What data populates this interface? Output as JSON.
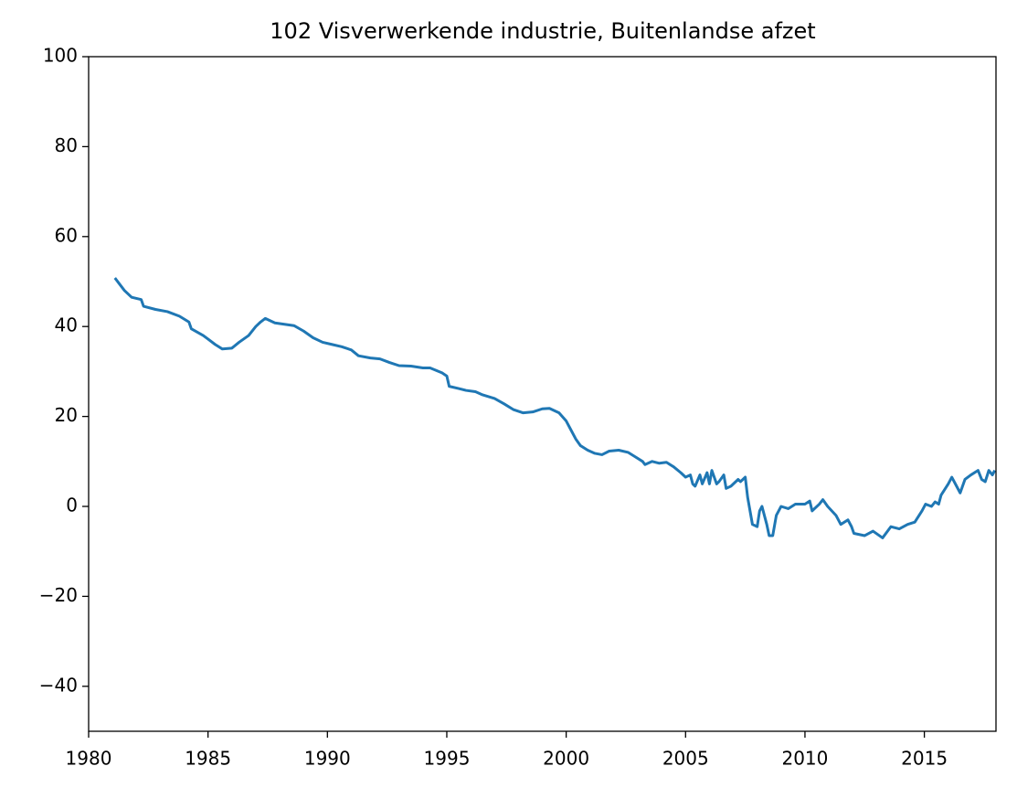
{
  "chart_data": {
    "type": "line",
    "title": "102 Visverwerkende industrie, Buitenlandse afzet",
    "xlim": [
      1980,
      2018
    ],
    "xticks": [
      1980,
      1985,
      1990,
      1995,
      2000,
      2005,
      2010,
      2015
    ],
    "ylim": [
      -50,
      100
    ],
    "yticks": [
      {
        "value": -40,
        "label": "−40"
      },
      {
        "value": -20,
        "label": "−20"
      },
      0,
      20,
      40,
      60,
      80,
      100
    ],
    "grid": false,
    "series": [
      {
        "color": "#1f77b4",
        "x": [
          1981.1,
          1981.5,
          1981.8,
          1982.2,
          1982.3,
          1982.8,
          1983.3,
          1983.8,
          1984.2,
          1984.3,
          1984.8,
          1985.0,
          1985.3,
          1985.6,
          1986.0,
          1986.3,
          1986.7,
          1987.0,
          1987.2,
          1987.4,
          1987.8,
          1988.2,
          1988.6,
          1989.0,
          1989.4,
          1989.8,
          1990.2,
          1990.6,
          1991.0,
          1991.3,
          1991.8,
          1992.2,
          1992.6,
          1993.0,
          1993.5,
          1994.0,
          1994.3,
          1994.8,
          1995.0,
          1995.1,
          1995.5,
          1995.8,
          1996.2,
          1996.5,
          1997.0,
          1997.4,
          1997.8,
          1998.2,
          1998.6,
          1999.0,
          1999.3,
          1999.7,
          2000.0,
          2000.2,
          2000.4,
          2000.6,
          2000.9,
          2001.2,
          2001.5,
          2001.8,
          2002.2,
          2002.6,
          2002.9,
          2003.2,
          2003.3,
          2003.6,
          2003.9,
          2004.2,
          2004.5,
          2004.8,
          2005.0,
          2005.2,
          2005.3,
          2005.4,
          2005.6,
          2005.7,
          2005.9,
          2006.0,
          2006.1,
          2006.3,
          2006.4,
          2006.6,
          2006.7,
          2006.9,
          2007.2,
          2007.3,
          2007.5,
          2007.6,
          2007.8,
          2008.0,
          2008.1,
          2008.2,
          2008.4,
          2008.5,
          2008.65,
          2008.8,
          2009.0,
          2009.3,
          2009.6,
          2010.0,
          2010.2,
          2010.3,
          2010.6,
          2010.75,
          2010.95,
          2011.3,
          2011.5,
          2011.8,
          2011.95,
          2012.05,
          2012.5,
          2012.85,
          2013.25,
          2013.6,
          2013.95,
          2014.3,
          2014.6,
          2014.9,
          2015.05,
          2015.3,
          2015.45,
          2015.6,
          2015.7,
          2016.0,
          2016.15,
          2016.35,
          2016.5,
          2016.7,
          2016.95,
          2017.25,
          2017.4,
          2017.55,
          2017.7,
          2017.85,
          2017.95
        ],
        "values": [
          50.8,
          48,
          46.5,
          46,
          44.5,
          43.8,
          43.3,
          42.3,
          41,
          39.5,
          38,
          37.2,
          36,
          35,
          35.2,
          36.5,
          38,
          40,
          41,
          41.8,
          40.8,
          40.5,
          40.2,
          39,
          37.5,
          36.5,
          36,
          35.5,
          34.8,
          33.5,
          33,
          32.8,
          32,
          31.3,
          31.2,
          30.8,
          30.8,
          29.7,
          29,
          26.7,
          26.2,
          25.8,
          25.5,
          24.8,
          24,
          22.8,
          21.5,
          20.8,
          21,
          21.7,
          21.8,
          20.8,
          19,
          17,
          15,
          13.5,
          12.5,
          11.8,
          11.5,
          12.3,
          12.5,
          12,
          11,
          10,
          9.3,
          10,
          9.6,
          9.8,
          8.8,
          7.5,
          6.5,
          7,
          5,
          4.5,
          7,
          5,
          7.5,
          5,
          8,
          5,
          5.5,
          7,
          4,
          4.5,
          6,
          5.5,
          6.5,
          2,
          -4,
          -4.5,
          -1,
          0,
          -4,
          -6.5,
          -6.5,
          -2,
          0,
          -0.5,
          0.5,
          0.5,
          1.2,
          -1,
          0.5,
          1.5,
          0,
          -2,
          -4,
          -3,
          -4.5,
          -6,
          -6.5,
          -5.5,
          -7,
          -4.5,
          -5,
          -4,
          -3.5,
          -1,
          0.5,
          0,
          1,
          0.5,
          2.5,
          5,
          6.5,
          4.5,
          3,
          6,
          7,
          8,
          6,
          5.5,
          8,
          7,
          8
        ]
      }
    ]
  }
}
